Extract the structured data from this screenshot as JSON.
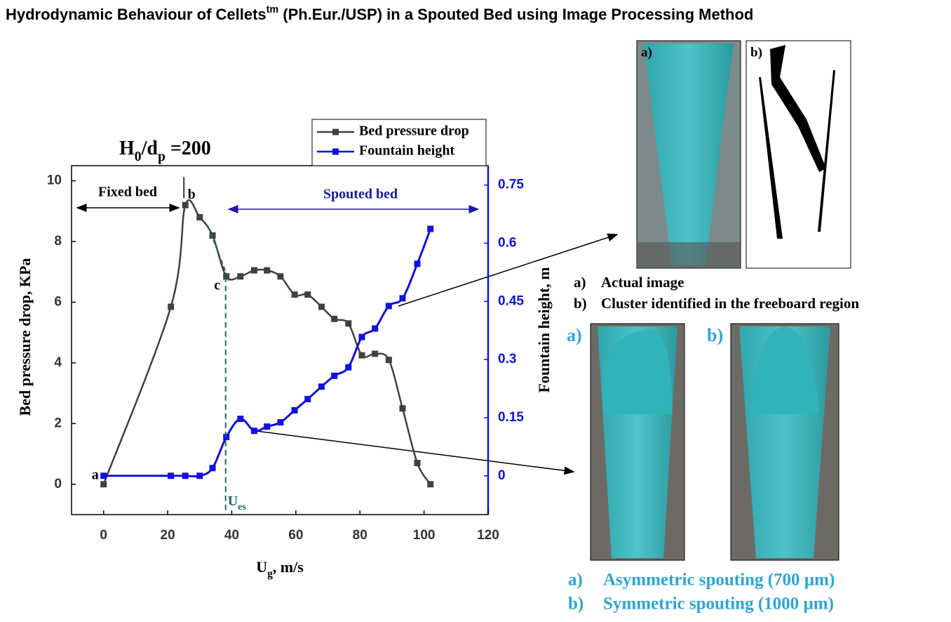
{
  "chart_data": {
    "type": "line",
    "title": [
      "Hydrodynamic Behaviour of Cellets",
      "tm",
      " (Ph.Eur./USP) in a Spouted Bed using Image Processing Method"
    ],
    "x": [
      0,
      21,
      25.5,
      30,
      34,
      38.3,
      42.7,
      47,
      51,
      55.2,
      59.6,
      63.7,
      68,
      72,
      76.4,
      80.6,
      84.7,
      89,
      93.3,
      97.9,
      102
    ],
    "series": [
      {
        "name": "Bed pressure drop",
        "color": "#404040",
        "values": [
          0,
          5.85,
          9.2,
          8.8,
          8.2,
          6.85,
          6.85,
          7.05,
          7.05,
          6.85,
          6.25,
          6.25,
          5.85,
          5.45,
          5.3,
          4.25,
          4.3,
          4.1,
          2.5,
          0.7,
          0
        ]
      },
      {
        "name": "Fountain height",
        "color": "#1010e0",
        "axis": "y2",
        "values": [
          0,
          0,
          0,
          0,
          0.02,
          0.1,
          0.147,
          0.116,
          0.127,
          0.138,
          0.169,
          0.198,
          0.23,
          0.258,
          0.28,
          0.358,
          0.38,
          0.438,
          0.458,
          0.547,
          0.637
        ]
      }
    ],
    "xlim": [
      -10,
      120
    ],
    "xticks": [
      0,
      20,
      40,
      60,
      80,
      100,
      120
    ],
    "ylim": [
      -1,
      10.5
    ],
    "yticks": [
      0,
      2,
      4,
      6,
      8,
      10
    ],
    "y2lim": [
      -0.1,
      0.8
    ],
    "y2ticks": [
      0,
      0.15,
      0.3,
      0.45,
      0.6,
      0.75
    ],
    "x_label": [
      "U",
      "g",
      ", m/s"
    ],
    "y_label": "Bed pressure drop, KPa",
    "y2_label": "Fountain height, m",
    "legend": "top-right",
    "ratio": [
      "H",
      "0",
      "/d",
      "p",
      " =200"
    ],
    "fixed_bed": "Fixed bed",
    "spouted_bed": "Spouted bed",
    "points": [
      "a",
      "b",
      "c"
    ],
    "ues": [
      "U",
      "es"
    ]
  },
  "images": {
    "top": {
      "labels": [
        "a)",
        "b)"
      ],
      "captions": [
        [
          "a)",
          "Actual image"
        ],
        [
          "b)",
          "Cluster identified in the freeboard region"
        ]
      ]
    },
    "bottom": {
      "labels": [
        "a)",
        "b)"
      ],
      "captions": [
        [
          "a)",
          "Asymmetric spouting (700 µm)"
        ],
        [
          "b)",
          "Symmetric spouting (1000 µm)"
        ]
      ]
    }
  }
}
